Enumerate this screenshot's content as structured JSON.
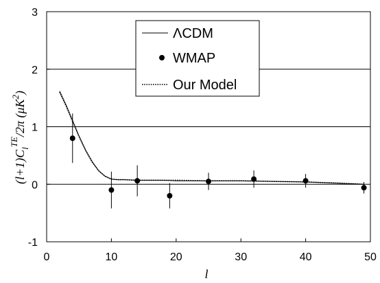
{
  "chart_data": {
    "type": "scatter",
    "xlabel": "l",
    "ylabel_parts": [
      "(l+1)C",
      "l",
      "TE",
      "/2π (μK",
      "2",
      ")"
    ],
    "xlim": [
      0,
      50
    ],
    "ylim": [
      -1,
      3
    ],
    "x_ticks": [
      0,
      10,
      20,
      30,
      40,
      50
    ],
    "y_ticks": [
      -1,
      0,
      1,
      2,
      3
    ],
    "grid": "horizontal",
    "legend_position": "top-center",
    "series": [
      {
        "name": "ΛCDM",
        "style": "solid-line",
        "x": [
          2,
          3,
          4,
          5,
          6,
          7,
          8,
          9,
          10,
          11,
          12,
          14,
          16,
          18,
          20,
          25,
          30,
          35,
          40,
          45,
          49
        ],
        "y": [
          1.62,
          1.38,
          1.11,
          0.84,
          0.6,
          0.4,
          0.24,
          0.14,
          0.09,
          0.08,
          0.08,
          0.07,
          0.07,
          0.07,
          0.06,
          0.06,
          0.06,
          0.05,
          0.04,
          0.02,
          0.0
        ]
      },
      {
        "name": "WMAP",
        "style": "points",
        "x": [
          4,
          10,
          14,
          19,
          25,
          32,
          40,
          49
        ],
        "y": [
          0.8,
          -0.1,
          0.06,
          -0.2,
          0.05,
          0.09,
          0.06,
          -0.06
        ],
        "err": [
          0.43,
          0.32,
          0.27,
          0.22,
          0.15,
          0.15,
          0.12,
          0.1
        ]
      },
      {
        "name": "Our Model",
        "style": "dotted-line",
        "x": [
          2,
          3,
          4,
          5,
          6,
          7,
          8,
          9,
          10,
          11,
          12,
          14,
          16,
          18,
          20,
          25,
          30,
          35,
          40,
          45,
          49
        ],
        "y": [
          1.6,
          1.36,
          1.09,
          0.83,
          0.59,
          0.39,
          0.24,
          0.14,
          0.09,
          0.08,
          0.08,
          0.07,
          0.07,
          0.07,
          0.07,
          0.06,
          0.06,
          0.05,
          0.04,
          0.02,
          0.0
        ]
      }
    ]
  }
}
